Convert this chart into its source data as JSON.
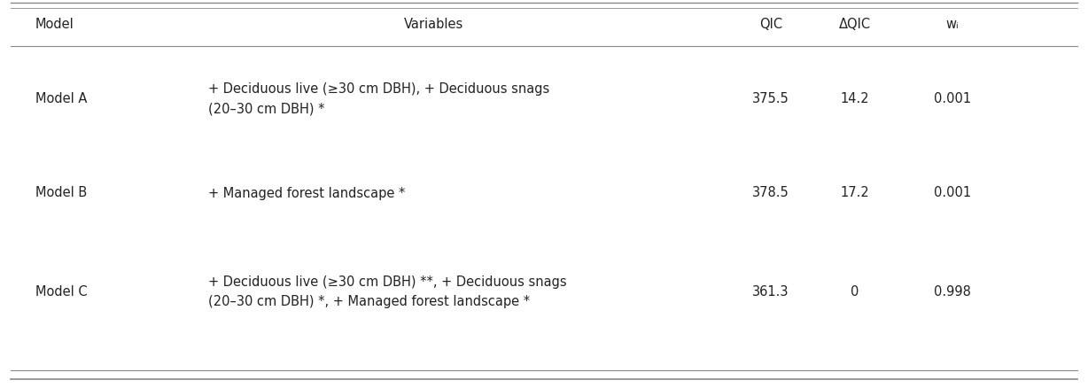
{
  "headers": [
    "Model",
    "Variables",
    "QIC",
    "ΔQIC",
    "wᵢ"
  ],
  "rows": [
    {
      "model": "Model A",
      "var_lines": [
        "+ Deciduous live (≥30 cm DBH), + Deciduous snags",
        "(20–30 cm DBH) *"
      ],
      "qic": "375.5",
      "dqic": "14.2",
      "wi": "0.001"
    },
    {
      "model": "Model B",
      "var_lines": [
        "+ Managed forest landscape *"
      ],
      "qic": "378.5",
      "dqic": "17.2",
      "wi": "0.001"
    },
    {
      "model": "Model C",
      "var_lines": [
        "+ Deciduous live (≥30 cm DBH) **, + Deciduous snags",
        "(20–30 cm DBH) *, + Managed forest landscape *"
      ],
      "qic": "361.3",
      "dqic": "0",
      "wi": "0.998"
    }
  ],
  "background_color": "#ffffff",
  "line_color": "#888888",
  "text_color": "#222222",
  "font_size": 10.5
}
